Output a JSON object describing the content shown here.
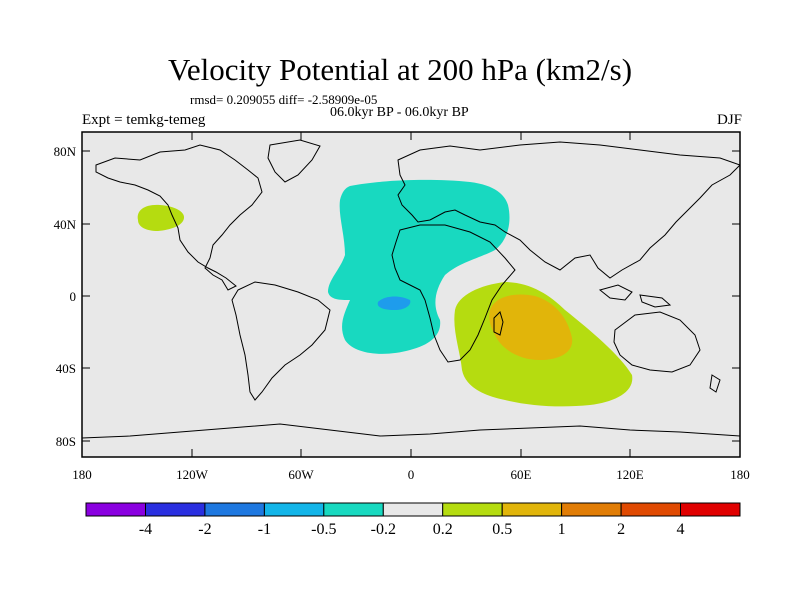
{
  "title": "Velocity Potential at 200 hPa (km2/s)",
  "stats_line": "rmsd= 0.209055 diff= -2.58909e-05",
  "period_line": "06.0kyr BP - 06.0kyr BP",
  "experiment": "Expt = temkg-temeg",
  "season": "DJF",
  "map": {
    "lat_labels": [
      "80N",
      "40N",
      "0",
      "40S",
      "80S"
    ],
    "lon_labels": [
      "180",
      "120W",
      "60W",
      "0",
      "60E",
      "120E",
      "180"
    ],
    "background_color": "#e8e8e8"
  },
  "colorbar": {
    "colors": [
      "#8a00e0",
      "#2a2fe0",
      "#1e78e0",
      "#13b5e8",
      "#18d9c0",
      "#e8e8e8",
      "#b5dc10",
      "#e1b50a",
      "#e17d06",
      "#e04a02",
      "#e00000"
    ],
    "labels": [
      "-4",
      "-2",
      "-1",
      "-0.5",
      "-0.2",
      "0.2",
      "0.5",
      "1",
      "2",
      "4"
    ]
  }
}
